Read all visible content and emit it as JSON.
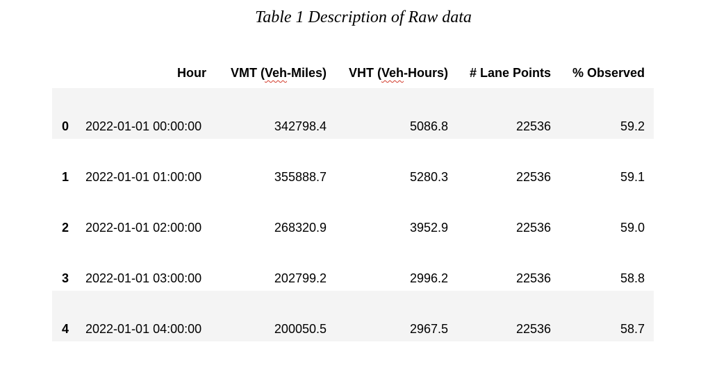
{
  "caption": "Table 1 Description of Raw data",
  "table": {
    "headers": {
      "hour": "Hour",
      "vmt_prefix": "VMT (",
      "vmt_veh": "Veh",
      "vmt_suffix": "-Miles)",
      "vht_prefix": "VHT (",
      "vht_veh": "Veh",
      "vht_suffix": "-Hours)",
      "lane_points": "# Lane Points",
      "observed": "% Observed"
    },
    "rows": [
      {
        "index": "0",
        "hour": "2022-01-01 00:00:00",
        "vmt": "342798.4",
        "vht": "5086.8",
        "lane_points": "22536",
        "observed": "59.2"
      },
      {
        "index": "1",
        "hour": "2022-01-01 01:00:00",
        "vmt": "355888.7",
        "vht": "5280.3",
        "lane_points": "22536",
        "observed": "59.1"
      },
      {
        "index": "2",
        "hour": "2022-01-01 02:00:00",
        "vmt": "268320.9",
        "vht": "3952.9",
        "lane_points": "22536",
        "observed": "59.0"
      },
      {
        "index": "3",
        "hour": "2022-01-01 03:00:00",
        "vmt": "202799.2",
        "vht": "2996.2",
        "lane_points": "22536",
        "observed": "58.8"
      },
      {
        "index": "4",
        "hour": "2022-01-01 04:00:00",
        "vmt": "200050.5",
        "vht": "2967.5",
        "lane_points": "22536",
        "observed": "58.7"
      }
    ]
  }
}
